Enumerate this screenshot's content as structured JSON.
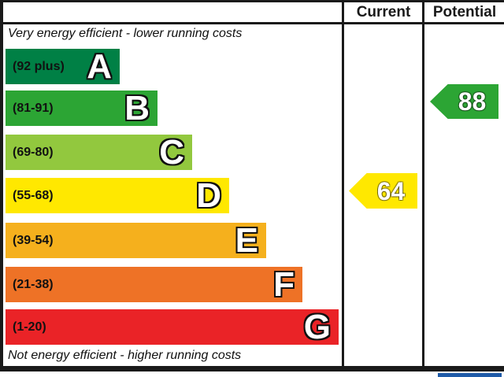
{
  "header": {
    "current": "Current",
    "potential": "Potential"
  },
  "captions": {
    "top": "Very energy efficient - lower running costs",
    "bottom": "Not energy efficient - higher running costs"
  },
  "chart_data": {
    "type": "bar",
    "title": "EPC energy efficiency rating chart",
    "categories": [
      "A",
      "B",
      "C",
      "D",
      "E",
      "F",
      "G"
    ],
    "bands": [
      {
        "letter": "A",
        "range": "(92 plus)",
        "min": 92,
        "max": 100,
        "color": "#008045"
      },
      {
        "letter": "B",
        "range": "(81-91)",
        "min": 81,
        "max": 91,
        "color": "#2ca534"
      },
      {
        "letter": "C",
        "range": "(69-80)",
        "min": 69,
        "max": 80,
        "color": "#92c83e"
      },
      {
        "letter": "D",
        "range": "(55-68)",
        "min": 55,
        "max": 68,
        "color": "#ffe800"
      },
      {
        "letter": "E",
        "range": "(39-54)",
        "min": 39,
        "max": 54,
        "color": "#f5b01d"
      },
      {
        "letter": "F",
        "range": "(21-38)",
        "min": 21,
        "max": 38,
        "color": "#ee7226"
      },
      {
        "letter": "G",
        "range": "(1-20)",
        "min": 1,
        "max": 20,
        "color": "#ea2327"
      }
    ],
    "markers": {
      "current": {
        "value": 64,
        "band": "D",
        "color": "#ffe800",
        "column": "Current"
      },
      "potential": {
        "value": 88,
        "band": "B",
        "color": "#2ca534",
        "column": "Potential"
      }
    },
    "legend_position": "none",
    "grid": false
  },
  "footer": {
    "partial_blue_bar_color": "#1f5ba8"
  }
}
